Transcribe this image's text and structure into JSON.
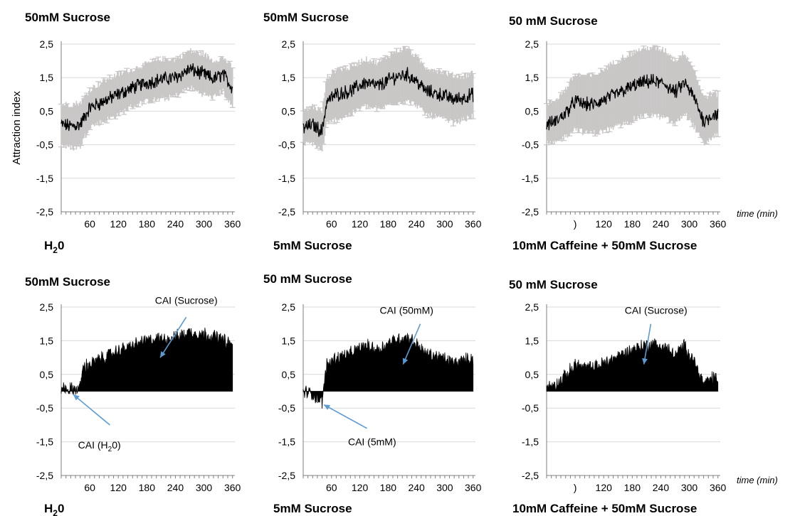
{
  "ylabel": "Attraction index",
  "time_label": "time (min)",
  "colors": {
    "trace": "#000000",
    "errorbar": "#c9c6c6",
    "arrow": "#5b9bd5",
    "grid": "#d9d9d9"
  },
  "chart_data": [
    {
      "type": "line",
      "panel": "top-1",
      "title": "50mM Sucrose",
      "xlabel_main": "H",
      "xlabel_sub": "2",
      "xlabel_tail": "0",
      "x_ticks": [
        "60",
        "120",
        "180",
        "240",
        "300",
        "360"
      ],
      "y_ticks": [
        "2,5",
        "1,5",
        "0,5",
        "-0,5",
        "-1,5",
        "-2,5"
      ],
      "xlim": [
        0,
        365
      ],
      "ylim": [
        -2.5,
        2.5
      ],
      "grid": true,
      "error_bars": true,
      "series": [
        {
          "x": [
            0,
            20,
            40,
            60,
            90,
            120,
            150,
            180,
            210,
            240,
            270,
            300,
            320,
            340,
            360
          ],
          "y": [
            0.1,
            0.05,
            0.1,
            0.6,
            0.8,
            1.0,
            1.2,
            1.35,
            1.45,
            1.5,
            1.75,
            1.6,
            1.45,
            1.6,
            1.2
          ],
          "err": [
            0.6,
            0.65,
            0.65,
            0.55,
            0.6,
            0.6,
            0.55,
            0.55,
            0.6,
            0.55,
            0.55,
            0.6,
            0.55,
            0.5,
            0.6
          ]
        }
      ]
    },
    {
      "type": "line",
      "panel": "top-2",
      "title": "50mM Sucrose",
      "xlabel_main": "5mM Sucrose",
      "xlabel_sub": "",
      "xlabel_tail": "",
      "x_ticks": [
        "60",
        "120",
        "180",
        "240",
        "300",
        "360"
      ],
      "y_ticks": [
        "2,5",
        "1,5",
        "0,5",
        "-0,5",
        "-1,5",
        "-2,5"
      ],
      "xlim": [
        0,
        365
      ],
      "ylim": [
        -2.5,
        2.5
      ],
      "grid": true,
      "error_bars": true,
      "series": [
        {
          "x": [
            0,
            20,
            40,
            50,
            70,
            100,
            130,
            160,
            190,
            220,
            240,
            260,
            290,
            320,
            340,
            360
          ],
          "y": [
            0.0,
            0.1,
            -0.1,
            0.8,
            1.0,
            1.1,
            1.35,
            1.25,
            1.5,
            1.6,
            1.4,
            1.1,
            1.0,
            0.85,
            0.9,
            1.0
          ],
          "err": [
            0.5,
            0.55,
            0.6,
            0.7,
            0.75,
            0.7,
            0.7,
            0.7,
            0.75,
            0.8,
            0.7,
            0.7,
            0.7,
            0.7,
            0.65,
            0.65
          ]
        }
      ]
    },
    {
      "type": "line",
      "panel": "top-3",
      "title": "50 mM Sucrose",
      "xlabel_main": "10mM Caffeine + 50mM Sucrose",
      "xlabel_sub": "",
      "xlabel_tail": "",
      "x_ticks": [
        ")",
        "120",
        "180",
        "240",
        "300",
        "360"
      ],
      "y_ticks": [
        "2,5",
        "1,5",
        "0,5",
        "-0,5",
        "-1,5",
        "-2,5"
      ],
      "xlim": [
        0,
        365
      ],
      "ylim": [
        -2.5,
        2.5
      ],
      "grid": true,
      "error_bars": true,
      "series": [
        {
          "x": [
            0,
            20,
            40,
            60,
            80,
            100,
            130,
            160,
            190,
            220,
            250,
            270,
            290,
            310,
            330,
            350,
            360
          ],
          "y": [
            0.1,
            0.2,
            0.45,
            0.8,
            0.7,
            0.7,
            0.9,
            1.1,
            1.3,
            1.4,
            1.3,
            1.05,
            1.35,
            0.9,
            0.2,
            0.4,
            0.4
          ],
          "err": [
            0.6,
            0.65,
            0.7,
            0.8,
            0.85,
            0.85,
            0.95,
            1.0,
            1.0,
            1.0,
            1.0,
            0.95,
            0.9,
            0.85,
            0.7,
            0.65,
            0.6
          ]
        }
      ]
    },
    {
      "type": "area",
      "panel": "bottom-1",
      "title": "50mM Sucrose",
      "xlabel_main": "H",
      "xlabel_sub": "2",
      "xlabel_tail": "0",
      "x_ticks": [
        "60",
        "120",
        "180",
        "240",
        "300",
        "360"
      ],
      "y_ticks": [
        "2,5",
        "1,5",
        "0,5",
        "-0,5",
        "-1,5",
        "-2,5"
      ],
      "xlim": [
        0,
        365
      ],
      "ylim": [
        -2.5,
        2.5
      ],
      "grid": true,
      "series": [
        {
          "x": [
            0,
            20,
            40,
            45,
            60,
            90,
            120,
            150,
            180,
            210,
            240,
            270,
            300,
            330,
            360
          ],
          "y": [
            0.1,
            0.05,
            0.1,
            0.7,
            0.8,
            1.0,
            1.2,
            1.35,
            1.5,
            1.55,
            1.6,
            1.75,
            1.7,
            1.6,
            1.35
          ]
        }
      ],
      "annotations": [
        {
          "text": "CAI (Sucrose)",
          "text_x": 0.72,
          "text_y": 2.6,
          "arrow_from": [
            0.72,
            2.2
          ],
          "arrow_to": [
            0.57,
            1.0
          ]
        },
        {
          "text": "CAI (H",
          "sub": "2",
          "tail": "0)",
          "text_x": 0.22,
          "text_y": -1.7,
          "arrow_from": [
            0.28,
            -1.0
          ],
          "arrow_to": [
            0.07,
            -0.1
          ]
        }
      ]
    },
    {
      "type": "area",
      "panel": "bottom-2",
      "title": "50 mM Sucrose",
      "xlabel_main": "5mM Sucrose",
      "xlabel_sub": "",
      "xlabel_tail": "",
      "x_ticks": [
        "60",
        "120",
        "180",
        "240",
        "300",
        "360"
      ],
      "y_ticks": [
        "2,5",
        "1,5",
        "0,5",
        "-0,5",
        "-1,5",
        "-2,5"
      ],
      "xlim": [
        0,
        365
      ],
      "ylim": [
        -2.5,
        2.5
      ],
      "grid": true,
      "series": [
        {
          "x": [
            0,
            20,
            40,
            50,
            70,
            100,
            130,
            160,
            190,
            220,
            240,
            260,
            290,
            320,
            340,
            360
          ],
          "y": [
            0.0,
            -0.1,
            -0.3,
            0.8,
            1.0,
            1.1,
            1.35,
            1.25,
            1.5,
            1.6,
            1.4,
            1.1,
            1.0,
            0.85,
            0.9,
            1.0
          ]
        }
      ],
      "annotations": [
        {
          "text": "CAI (50mM)",
          "text_x": 0.6,
          "text_y": 2.3,
          "arrow_from": [
            0.68,
            2.0
          ],
          "arrow_to": [
            0.58,
            0.8
          ]
        },
        {
          "text": "CAI (5mM)",
          "text_x": 0.4,
          "text_y": -1.6,
          "arrow_from": [
            0.37,
            -1.1
          ],
          "arrow_to": [
            0.12,
            -0.4
          ]
        }
      ]
    },
    {
      "type": "area",
      "panel": "bottom-3",
      "title": "50 mM Sucrose",
      "xlabel_main": "10mM Caffeine + 50mM Sucrose",
      "xlabel_sub": "",
      "xlabel_tail": "",
      "x_ticks": [
        ")",
        "120",
        "180",
        "240",
        "300",
        "360"
      ],
      "y_ticks": [
        "2,5",
        "1,5",
        "0,5",
        "-0,5",
        "-1,5",
        "-2,5"
      ],
      "xlim": [
        0,
        365
      ],
      "ylim": [
        -2.5,
        2.5
      ],
      "grid": true,
      "series": [
        {
          "x": [
            0,
            20,
            40,
            60,
            80,
            100,
            130,
            160,
            190,
            220,
            250,
            270,
            290,
            310,
            330,
            350,
            360
          ],
          "y": [
            0.1,
            0.2,
            0.45,
            0.8,
            0.7,
            0.7,
            0.9,
            1.1,
            1.3,
            1.4,
            1.3,
            1.05,
            1.35,
            0.9,
            0.2,
            0.4,
            0.4
          ]
        }
      ],
      "annotations": [
        {
          "text": "CAI (Sucrose)",
          "text_x": 0.63,
          "text_y": 2.3,
          "arrow_from": [
            0.6,
            2.0
          ],
          "arrow_to": [
            0.56,
            0.8
          ]
        }
      ]
    }
  ]
}
